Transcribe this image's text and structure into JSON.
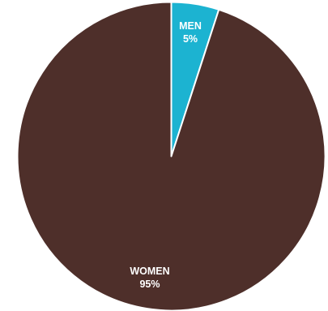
{
  "chart_data": {
    "type": "pie",
    "slices": [
      {
        "label": "MEN",
        "value": 5,
        "value_label": "5%",
        "color": "#1cb3d1"
      },
      {
        "label": "WOMEN",
        "value": 95,
        "value_label": "95%",
        "color": "#4e2f2a"
      }
    ],
    "start_angle_deg": 0,
    "direction": "clockwise",
    "legend": "none",
    "separator_color": "#ffffff"
  }
}
